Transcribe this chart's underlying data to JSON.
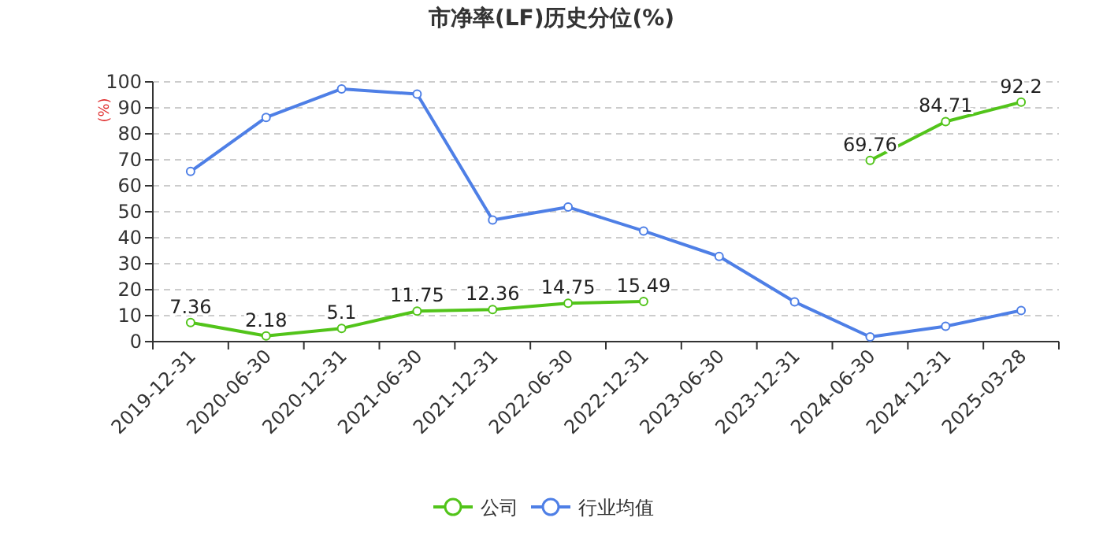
{
  "chart_data": {
    "type": "line",
    "title": "市净率(LF)历史分位(%)",
    "ylabel": "(%)",
    "categories": [
      "2019-12-31",
      "2020-06-30",
      "2020-12-31",
      "2021-06-30",
      "2021-12-31",
      "2022-06-30",
      "2022-12-31",
      "2023-06-30",
      "2023-12-31",
      "2024-06-30",
      "2024-12-31",
      "2025-03-28"
    ],
    "series": [
      {
        "name": "公司",
        "color": "#52c41a",
        "values": [
          7.36,
          2.18,
          5.1,
          11.75,
          12.36,
          14.75,
          15.49,
          null,
          null,
          69.76,
          84.71,
          92.2
        ],
        "value_labels": [
          "7.36",
          "2.18",
          "5.1",
          "11.75",
          "12.36",
          "14.75",
          "15.49",
          null,
          null,
          "69.76",
          "84.71",
          "92.2"
        ]
      },
      {
        "name": "行业均值",
        "color": "#4e7fe6",
        "values": [
          65.5,
          86.3,
          97.3,
          95.3,
          46.8,
          51.8,
          42.6,
          32.8,
          15.3,
          1.8,
          5.9,
          12.0
        ]
      }
    ],
    "ylim": [
      0,
      100
    ],
    "yticks": [
      0,
      10,
      20,
      30,
      40,
      50,
      60,
      70,
      80,
      90,
      100
    ],
    "grid": "y",
    "legend": "bottom",
    "marker": "circle",
    "line_style": "solid"
  }
}
